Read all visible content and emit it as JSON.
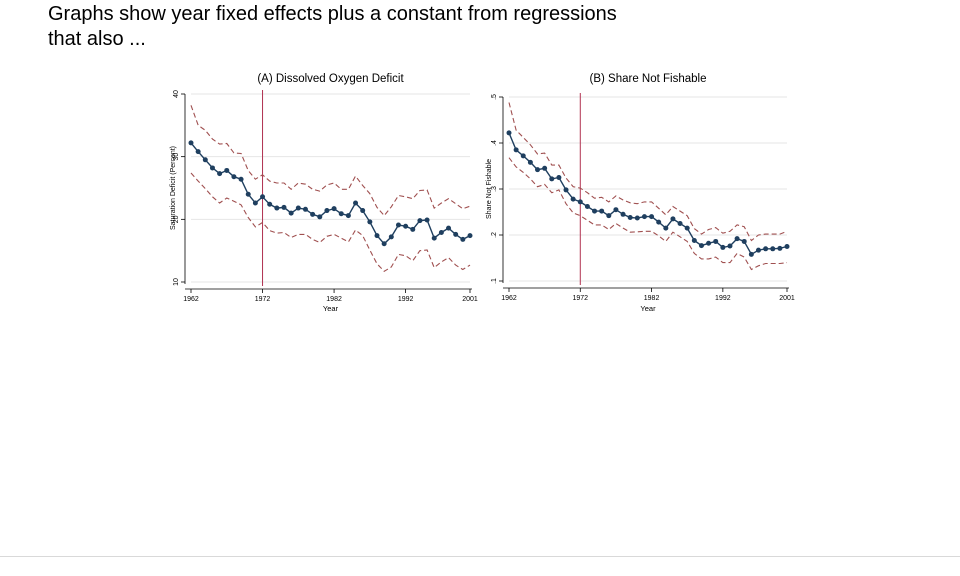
{
  "slide": {
    "text_line1": "Graphs show year fixed effects plus a constant from regressions",
    "text_line2": "that also ..."
  },
  "chart_data": [
    {
      "type": "line",
      "title": "(A) Dissolved Oxygen Deficit",
      "xlabel": "Year",
      "ylabel": "Saturation Deficit (Percent)",
      "xlim": [
        1962,
        2001
      ],
      "ylim": [
        10,
        40
      ],
      "xticks": [
        1962,
        1972,
        1982,
        1992,
        2001
      ],
      "yticks": [
        10,
        20,
        30,
        40
      ],
      "vline": 1972,
      "colors": {
        "estimate": "#1f3f5f",
        "ci": "#a05050",
        "vline": "#b03050"
      },
      "x": [
        1962,
        1963,
        1964,
        1965,
        1966,
        1967,
        1968,
        1969,
        1970,
        1971,
        1972,
        1973,
        1974,
        1975,
        1976,
        1977,
        1978,
        1979,
        1980,
        1981,
        1982,
        1983,
        1984,
        1985,
        1986,
        1987,
        1988,
        1989,
        1990,
        1991,
        1992,
        1993,
        1994,
        1995,
        1996,
        1997,
        1998,
        1999,
        2000,
        2001
      ],
      "estimate": [
        32.2,
        30.8,
        29.5,
        28.2,
        27.3,
        27.8,
        26.8,
        26.4,
        24.0,
        22.6,
        23.6,
        22.4,
        21.8,
        21.9,
        21.0,
        21.8,
        21.6,
        20.8,
        20.4,
        21.4,
        21.7,
        20.9,
        20.6,
        22.6,
        21.4,
        19.6,
        17.4,
        16.1,
        17.2,
        19.1,
        18.9,
        18.4,
        19.8,
        19.9,
        17.0,
        17.9,
        18.6,
        17.6,
        16.8,
        17.4
      ],
      "upper": [
        38.2,
        35.0,
        34.2,
        32.8,
        32.0,
        32.1,
        30.6,
        30.5,
        27.8,
        26.4,
        27.1,
        26.1,
        25.8,
        25.8,
        24.8,
        25.8,
        25.6,
        24.8,
        24.5,
        25.5,
        25.8,
        24.8,
        24.8,
        26.9,
        25.4,
        24.1,
        21.9,
        20.6,
        22.0,
        23.8,
        23.6,
        23.3,
        24.6,
        24.7,
        21.8,
        22.6,
        23.3,
        22.5,
        21.7,
        22.1
      ],
      "lower": [
        27.4,
        26.1,
        24.9,
        23.6,
        22.6,
        23.4,
        22.9,
        22.3,
        20.3,
        18.8,
        19.5,
        18.2,
        17.8,
        17.9,
        17.1,
        17.6,
        17.6,
        16.8,
        16.3,
        17.3,
        17.6,
        17.0,
        16.4,
        18.3,
        17.4,
        15.1,
        12.9,
        11.7,
        12.4,
        14.4,
        14.2,
        13.4,
        15.0,
        15.1,
        12.3,
        13.2,
        13.9,
        12.7,
        12.0,
        12.7
      ]
    },
    {
      "type": "line",
      "title": "(B) Share Not Fishable",
      "xlabel": "Year",
      "ylabel": "Share Not Fishable",
      "xlim": [
        1962,
        2001
      ],
      "ylim": [
        0.1,
        0.5
      ],
      "xticks": [
        1962,
        1972,
        1982,
        1992,
        2001
      ],
      "yticks": [
        0.1,
        0.2,
        0.3,
        0.4,
        0.5
      ],
      "ytick_labels": [
        ".1",
        ".2",
        ".3",
        ".4",
        ".5"
      ],
      "vline": 1972,
      "colors": {
        "estimate": "#1f3f5f",
        "ci": "#a05050",
        "vline": "#b03050"
      },
      "x": [
        1962,
        1963,
        1964,
        1965,
        1966,
        1967,
        1968,
        1969,
        1970,
        1971,
        1972,
        1973,
        1974,
        1975,
        1976,
        1977,
        1978,
        1979,
        1980,
        1981,
        1982,
        1983,
        1984,
        1985,
        1986,
        1987,
        1988,
        1989,
        1990,
        1991,
        1992,
        1993,
        1994,
        1995,
        1996,
        1997,
        1998,
        1999,
        2000,
        2001
      ],
      "estimate": [
        0.422,
        0.385,
        0.372,
        0.358,
        0.342,
        0.345,
        0.322,
        0.325,
        0.298,
        0.278,
        0.272,
        0.262,
        0.252,
        0.252,
        0.242,
        0.255,
        0.245,
        0.238,
        0.237,
        0.24,
        0.24,
        0.228,
        0.215,
        0.235,
        0.225,
        0.215,
        0.188,
        0.177,
        0.182,
        0.186,
        0.173,
        0.176,
        0.192,
        0.186,
        0.158,
        0.167,
        0.17,
        0.17,
        0.171,
        0.175
      ],
      "upper": [
        0.488,
        0.428,
        0.412,
        0.396,
        0.376,
        0.378,
        0.352,
        0.352,
        0.324,
        0.305,
        0.302,
        0.292,
        0.28,
        0.282,
        0.272,
        0.285,
        0.276,
        0.27,
        0.268,
        0.272,
        0.272,
        0.258,
        0.244,
        0.262,
        0.252,
        0.242,
        0.214,
        0.202,
        0.212,
        0.216,
        0.204,
        0.208,
        0.222,
        0.218,
        0.188,
        0.2,
        0.202,
        0.202,
        0.202,
        0.208
      ],
      "lower": [
        0.368,
        0.348,
        0.336,
        0.322,
        0.305,
        0.31,
        0.292,
        0.298,
        0.268,
        0.248,
        0.242,
        0.232,
        0.222,
        0.222,
        0.212,
        0.225,
        0.215,
        0.206,
        0.207,
        0.208,
        0.208,
        0.198,
        0.186,
        0.206,
        0.196,
        0.186,
        0.16,
        0.148,
        0.148,
        0.152,
        0.14,
        0.14,
        0.16,
        0.152,
        0.125,
        0.133,
        0.138,
        0.138,
        0.138,
        0.14
      ]
    }
  ]
}
